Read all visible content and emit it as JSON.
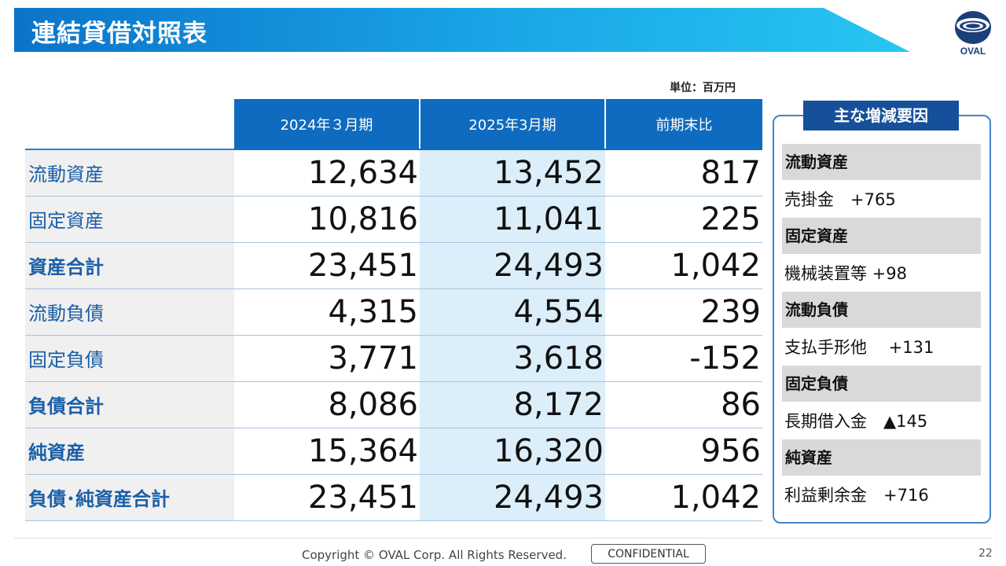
{
  "title": "連結貸借対照表",
  "logo": {
    "text": "OVAL",
    "color": "#1b3f7a"
  },
  "unit": "単位：百万円",
  "table": {
    "headers": [
      "2024年３月期",
      "2025年3月期",
      "前期末比"
    ],
    "rows": [
      {
        "label": "流動資産",
        "bold": false,
        "v2024": "12,634",
        "v2025": "13,452",
        "diff": "817"
      },
      {
        "label": "固定資産",
        "bold": false,
        "v2024": "10,816",
        "v2025": "11,041",
        "diff": "225"
      },
      {
        "label": "資産合計",
        "bold": true,
        "v2024": "23,451",
        "v2025": "24,493",
        "diff": "1,042"
      },
      {
        "label": "流動負債",
        "bold": false,
        "v2024": "4,315",
        "v2025": "4,554",
        "diff": "239"
      },
      {
        "label": "固定負債",
        "bold": false,
        "v2024": "3,771",
        "v2025": "3,618",
        "diff": "-152"
      },
      {
        "label": "負債合計",
        "bold": true,
        "v2024": "8,086",
        "v2025": "8,172",
        "diff": "86"
      },
      {
        "label": "純資産",
        "bold": true,
        "v2024": "15,364",
        "v2025": "16,320",
        "diff": "956"
      },
      {
        "label": "負債･純資産合計",
        "bold": true,
        "v2024": "23,451",
        "v2025": "24,493",
        "diff": "1,042"
      }
    ]
  },
  "factors": {
    "title": "主な増減要因",
    "items": [
      {
        "heading": "流動資産",
        "detail": "売掛金　+765"
      },
      {
        "heading": "固定資産",
        "detail": "機械装置等 +98"
      },
      {
        "heading": "流動負債",
        "detail": "支払手形他　 +131"
      },
      {
        "heading": "固定負債",
        "detail": "長期借入金　▲145"
      },
      {
        "heading": "純資産",
        "detail": "利益剰余金　+716"
      }
    ]
  },
  "footer": {
    "copyright": "Copyright © OVAL Corp. All Rights Reserved.",
    "confidential": "CONFIDENTIAL",
    "page": "22"
  },
  "colors": {
    "banner_start": "#0b74c9",
    "banner_end": "#27c6f2",
    "header_blue": "#0f6bbf",
    "highlight_column": "#dbeef9",
    "label_text": "#1a5fa8"
  }
}
